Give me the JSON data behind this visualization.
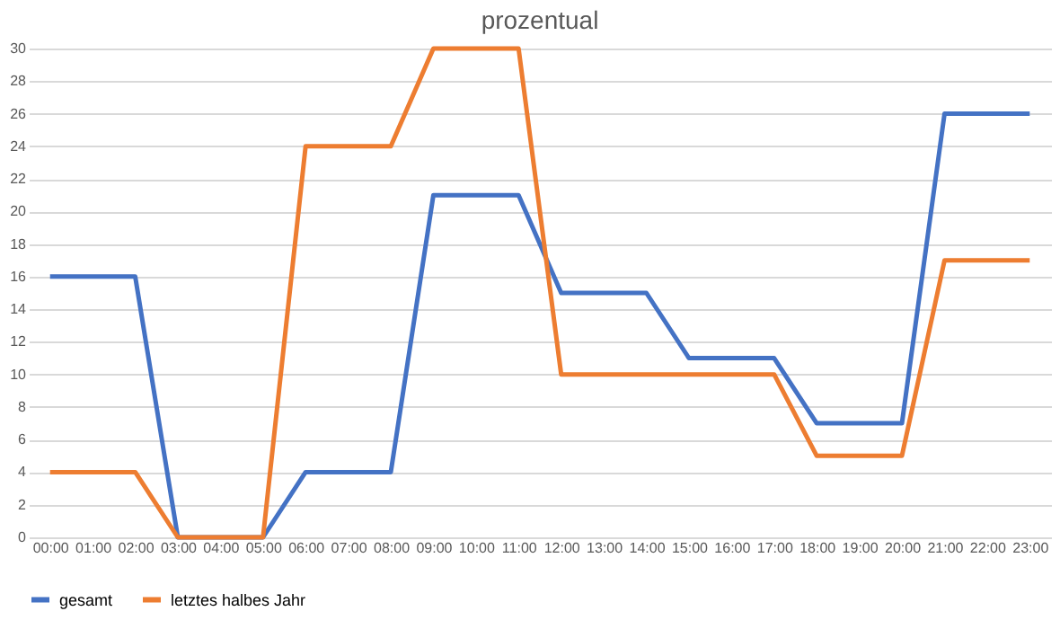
{
  "chart_data": {
    "type": "line",
    "title": "prozentual",
    "categories": [
      "00:00",
      "01:00",
      "02:00",
      "03:00",
      "04:00",
      "05:00",
      "06:00",
      "07:00",
      "08:00",
      "09:00",
      "10:00",
      "11:00",
      "12:00",
      "13:00",
      "14:00",
      "15:00",
      "16:00",
      "17:00",
      "18:00",
      "19:00",
      "20:00",
      "21:00",
      "22:00",
      "23:00"
    ],
    "series": [
      {
        "name": "gesamt",
        "color": "#4472c4",
        "values": [
          16,
          16,
          16,
          0,
          0,
          0,
          4,
          4,
          4,
          21,
          21,
          21,
          15,
          15,
          15,
          11,
          11,
          11,
          7,
          7,
          7,
          26,
          26,
          26
        ]
      },
      {
        "name": "letztes halbes Jahr",
        "color": "#ed7d31",
        "values": [
          4,
          4,
          4,
          0,
          0,
          0,
          24,
          24,
          24,
          30,
          30,
          30,
          10,
          10,
          10,
          10,
          10,
          10,
          5,
          5,
          5,
          17,
          17,
          17
        ]
      }
    ],
    "ylim": [
      0,
      30
    ],
    "yticks": [
      0,
      2,
      4,
      6,
      8,
      10,
      12,
      14,
      16,
      18,
      20,
      22,
      24,
      26,
      28,
      30
    ],
    "grid": "y",
    "legend": "bottom",
    "marker": "none",
    "line_style": "solid"
  }
}
